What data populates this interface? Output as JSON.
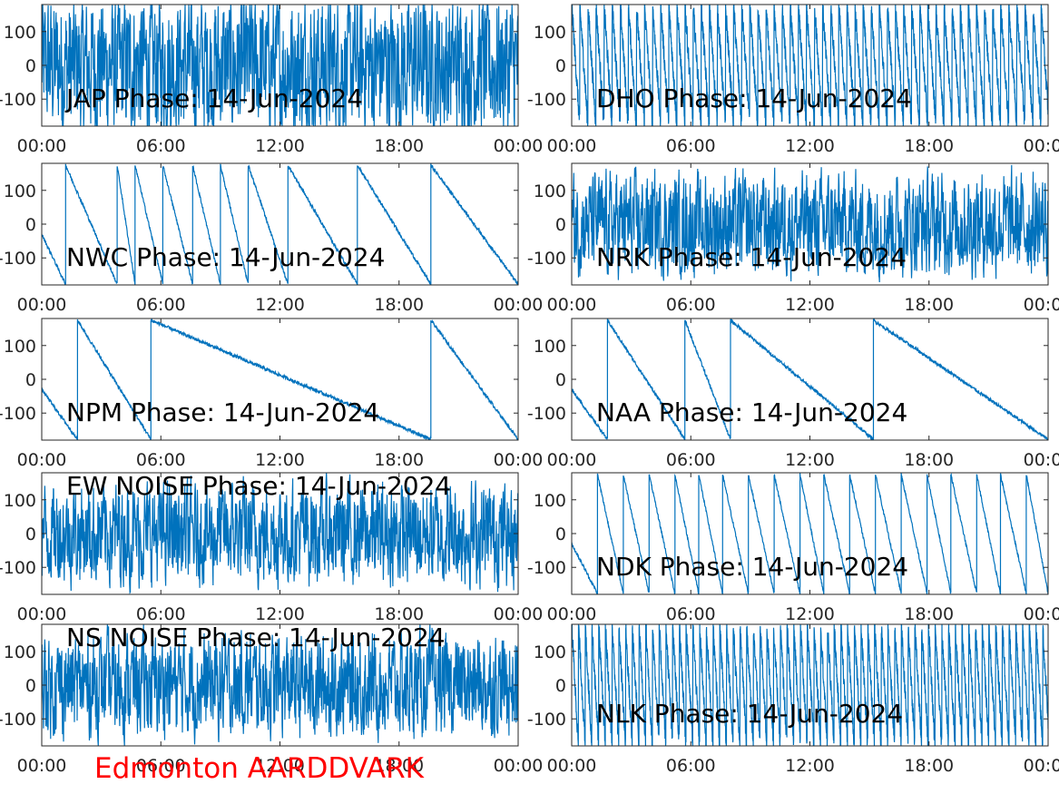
{
  "footer": {
    "station_label": "Edmonton AARDDVARK",
    "color": "#ff0000"
  },
  "style": {
    "line_color": "#0072bd",
    "axis_color": "#262626"
  },
  "chart_data": [
    {
      "type": "line",
      "title": "JAP Phase: 14-Jun-2024",
      "pattern": "noise_dense",
      "yticks": [
        "100",
        "0",
        "-100"
      ],
      "ytick_values": [
        100,
        0,
        -100
      ],
      "ylim": [
        -180,
        180
      ],
      "xticks": [
        "00:00",
        "06:00",
        "12:00",
        "18:00",
        "00:00"
      ],
      "xlim_hours": [
        0,
        24
      ]
    },
    {
      "type": "line",
      "title": "DHO Phase: 14-Jun-2024",
      "pattern": "fast_wrap",
      "yticks": [
        "100",
        "0",
        "-100"
      ],
      "ytick_values": [
        100,
        0,
        -100
      ],
      "ylim": [
        -180,
        180
      ],
      "xticks": [
        "00:00",
        "06:00",
        "12:00",
        "18:00",
        "00:00"
      ],
      "xlim_hours": [
        0,
        24
      ]
    },
    {
      "type": "line",
      "title": "NWC Phase: 14-Jun-2024",
      "pattern": "wrap",
      "yticks": [
        "100",
        "0",
        "-100"
      ],
      "ytick_values": [
        100,
        0,
        -100
      ],
      "ylim": [
        -180,
        180
      ],
      "xticks": [
        "00:00",
        "06:00",
        "12:00",
        "18:00",
        "00:00"
      ],
      "xlim_hours": [
        0,
        24
      ],
      "wrap_hours": [
        1.2,
        3.8,
        4.7,
        6.1,
        7.6,
        9.0,
        10.4,
        12.4,
        15.9,
        19.6
      ]
    },
    {
      "type": "line",
      "title": "NRK Phase: 14-Jun-2024",
      "pattern": "noise",
      "yticks": [
        "100",
        "0",
        "-100"
      ],
      "ytick_values": [
        100,
        0,
        -100
      ],
      "ylim": [
        -180,
        180
      ],
      "xticks": [
        "00:00",
        "06:00",
        "12:00",
        "18:00",
        "00:00"
      ],
      "xlim_hours": [
        0,
        24
      ]
    },
    {
      "type": "line",
      "title": "NPM Phase: 14-Jun-2024",
      "pattern": "wrap",
      "yticks": [
        "100",
        "0",
        "-100"
      ],
      "ytick_values": [
        100,
        0,
        -100
      ],
      "ylim": [
        -180,
        180
      ],
      "xticks": [
        "00:00",
        "06:00",
        "12:00",
        "18:00",
        "00:00"
      ],
      "xlim_hours": [
        0,
        24
      ],
      "wrap_hours": [
        1.8,
        5.5,
        19.6
      ]
    },
    {
      "type": "line",
      "title": "NAA Phase: 14-Jun-2024",
      "pattern": "wrap",
      "yticks": [
        "100",
        "0",
        "-100"
      ],
      "ytick_values": [
        100,
        0,
        -100
      ],
      "ylim": [
        -180,
        180
      ],
      "xticks": [
        "00:00",
        "06:00",
        "12:00",
        "18:00",
        "00:00"
      ],
      "xlim_hours": [
        0,
        24
      ],
      "wrap_hours": [
        1.8,
        5.7,
        8.0,
        15.2
      ]
    },
    {
      "type": "line",
      "title": "EW NOISE Phase: 14-Jun-2024",
      "pattern": "noise",
      "yticks": [
        "100",
        "0",
        "-100"
      ],
      "ytick_values": [
        100,
        0,
        -100
      ],
      "ylim": [
        -180,
        180
      ],
      "xticks": [
        "00:00",
        "06:00",
        "12:00",
        "18:00",
        "00:00"
      ],
      "xlim_hours": [
        0,
        24
      ]
    },
    {
      "type": "line",
      "title": "NDK Phase: 14-Jun-2024",
      "pattern": "wrap",
      "yticks": [
        "100",
        "0",
        "-100"
      ],
      "ytick_values": [
        100,
        0,
        -100
      ],
      "ylim": [
        -180,
        180
      ],
      "xticks": [
        "00:00",
        "06:00",
        "12:00",
        "18:00",
        "00:00"
      ],
      "xlim_hours": [
        0,
        24
      ],
      "wrap_hours": [
        1.3,
        2.6,
        3.9,
        5.2,
        6.4,
        7.6,
        8.9,
        10.2,
        11.5,
        12.7,
        14.0,
        15.3,
        16.6,
        17.9,
        19.1,
        20.4,
        21.6,
        22.9
      ]
    },
    {
      "type": "line",
      "title": "NS NOISE Phase: 14-Jun-2024",
      "pattern": "noise",
      "yticks": [
        "100",
        "0",
        "-100"
      ],
      "ytick_values": [
        100,
        0,
        -100
      ],
      "ylim": [
        -180,
        180
      ],
      "xticks": [
        "00:00",
        "06:00",
        "12:00",
        "18:00",
        "00:00"
      ],
      "xlim_hours": [
        0,
        24
      ]
    },
    {
      "type": "line",
      "title": "NLK Phase: 14-Jun-2024",
      "pattern": "fast_wrap",
      "yticks": [
        "100",
        "0",
        "-100"
      ],
      "ytick_values": [
        100,
        0,
        -100
      ],
      "ylim": [
        -180,
        180
      ],
      "xticks": [
        "00:00",
        "06:00",
        "12:00",
        "18:00",
        "00:00"
      ],
      "xlim_hours": [
        0,
        24
      ]
    }
  ]
}
